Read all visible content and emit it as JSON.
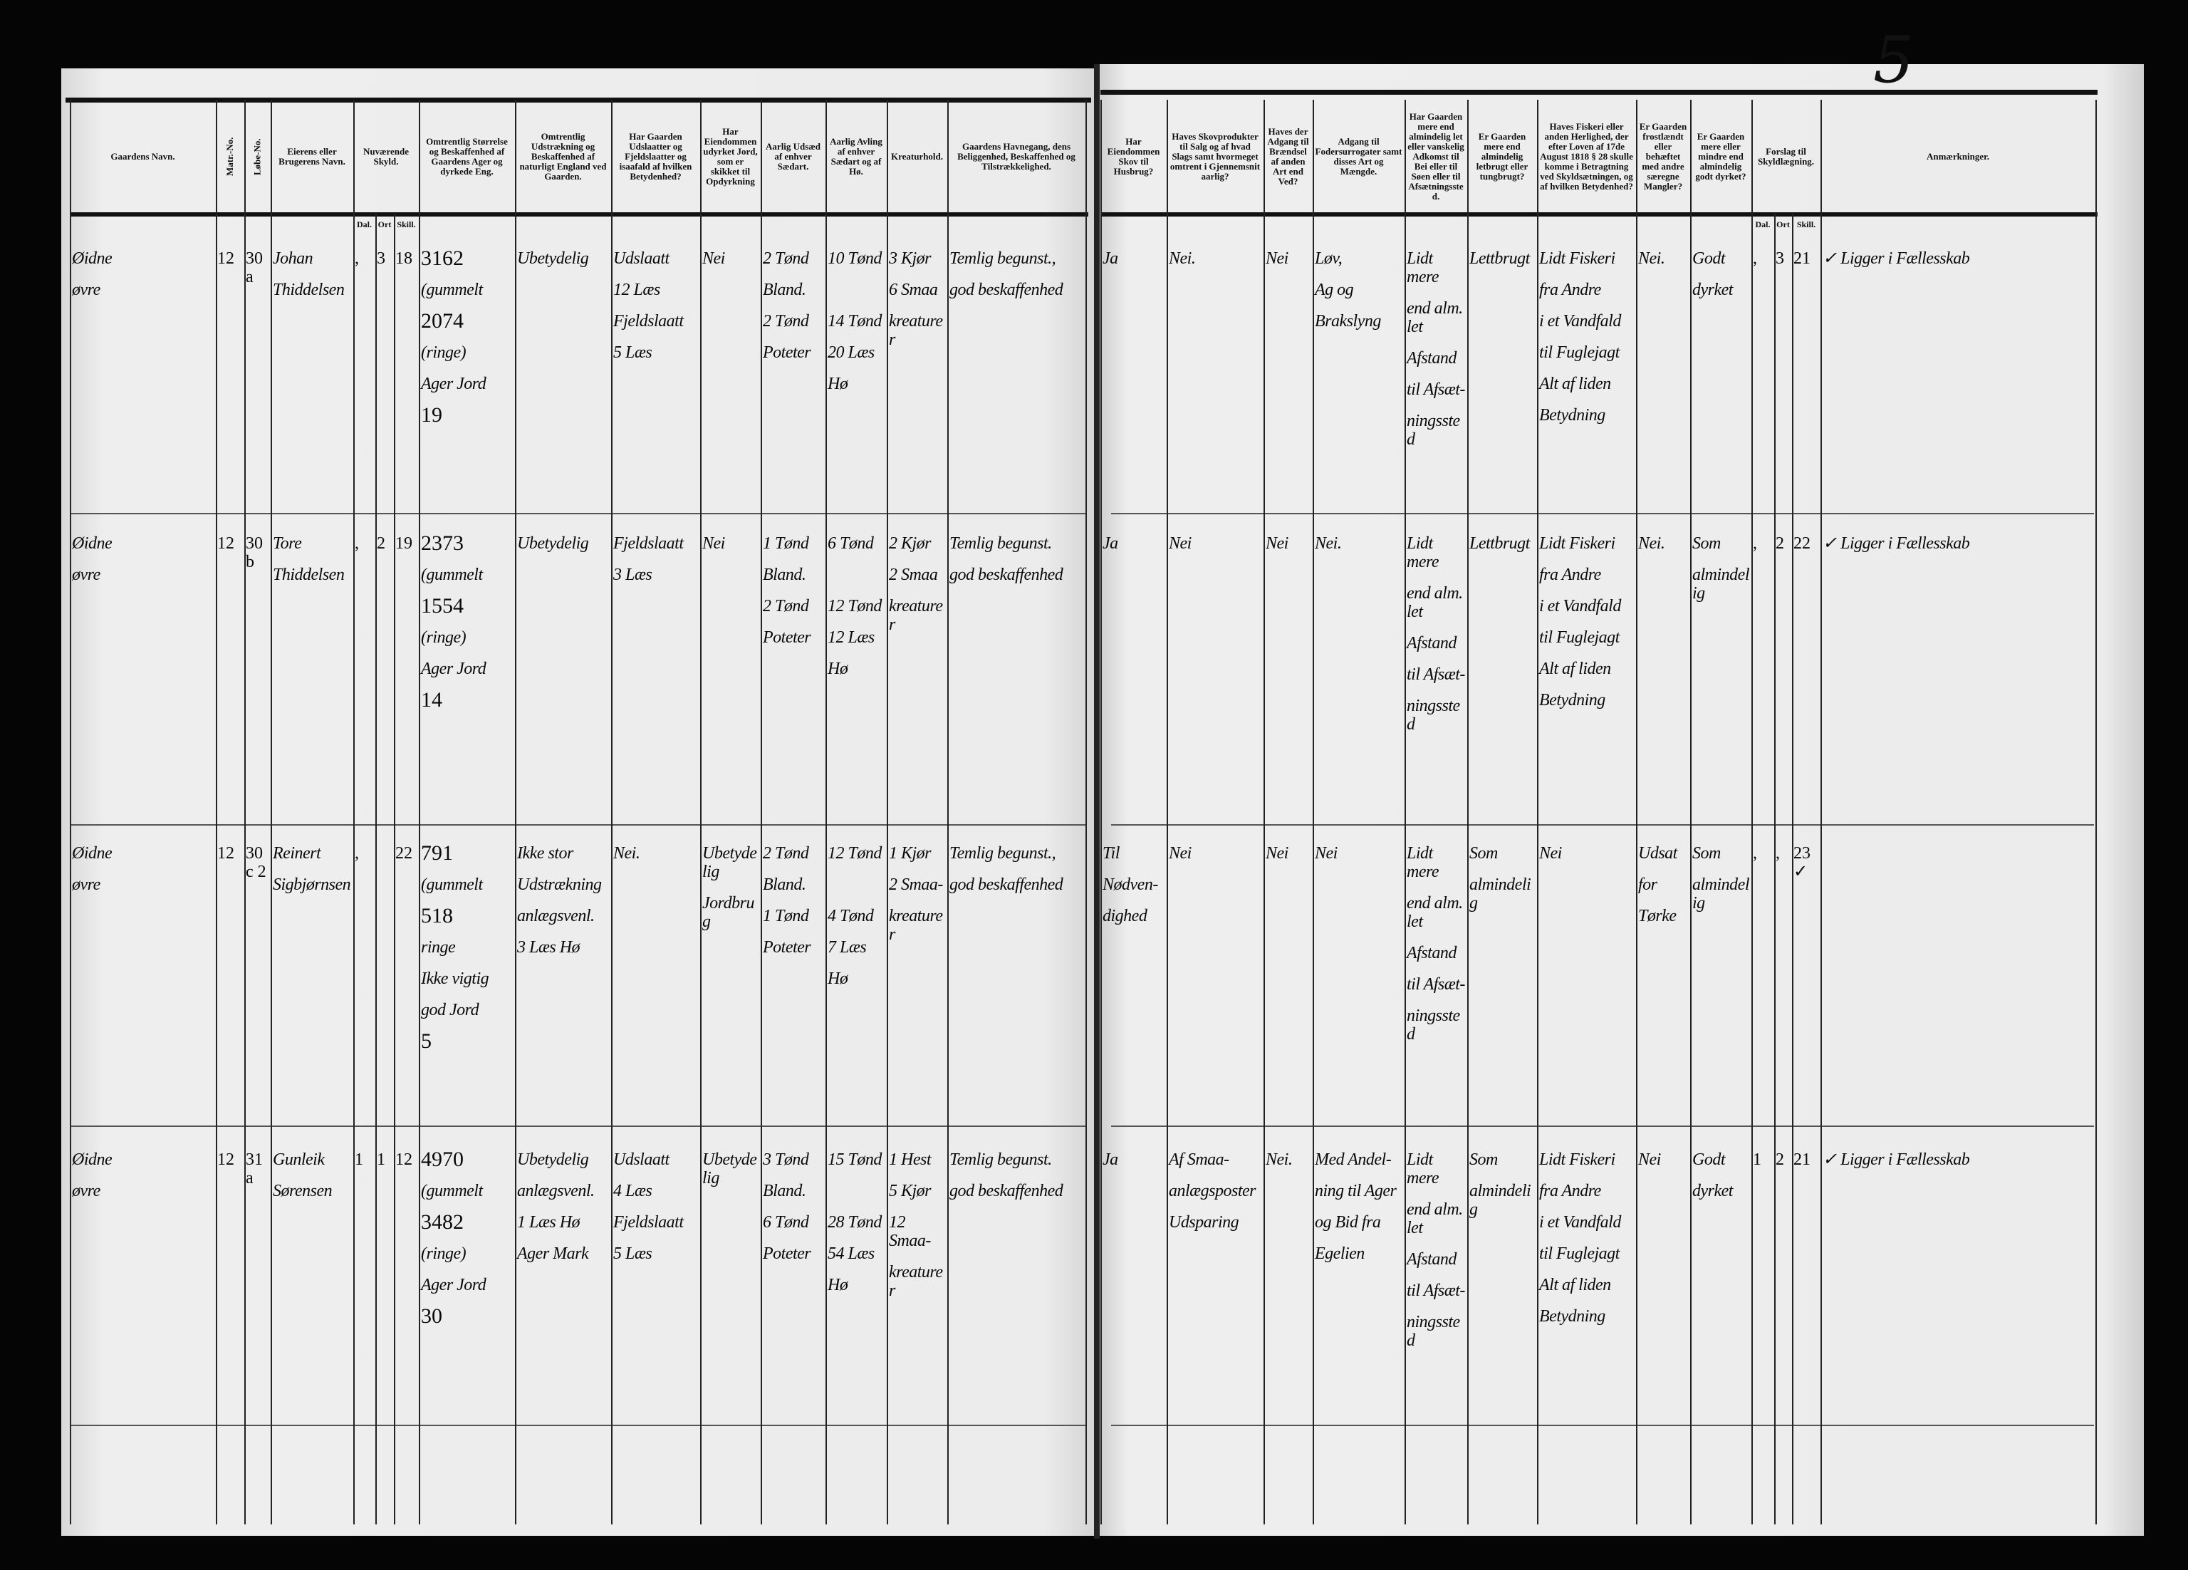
{
  "page_number": "5",
  "left_headers": [
    "Gaardens Navn.",
    "Matr.-No.",
    "Løbe-No.",
    "Eierens eller Brugerens Navn.",
    "Nuværende Skyld.",
    "Omtrentlig Størrelse og Beskaffenhed af Gaardens Ager og dyrkede Eng.",
    "Omtrentlig Udstrækning og Beskaffenhed af naturligt England ved Gaarden.",
    "Har Gaarden Udslaatter og Fjeldslaatter og isaafald af hvilken Betydenhed?",
    "Har Eiendommen udyrket Jord, som er skikket til Opdyrkning",
    "Aarlig Udsæd af enhver Sædart.",
    "Aarlig Avling af enhver Sædart og af Hø.",
    "Kreaturhold.",
    "Gaardens Havnegang, dens Beliggenhed, Beskaffenhed og Tilstrækkelighed."
  ],
  "right_headers": [
    "Har Eiendommen Skov til Husbrug?",
    "Haves Skovprodukter til Salg og af hvad Slags samt hvormeget omtrent i Gjennemsnit aarlig?",
    "Haves der Adgang til Brændsel af anden Art end Ved?",
    "Adgang til Fodersurrogater samt disses Art og Mængde.",
    "Har Gaarden mere end almindelig let eller vanskelig Adkomst til Bei eller til Søen eller til Afsætningssted.",
    "Er Gaarden mere end almindelig letbrugt eller tungbrugt?",
    "Haves Fiskeri eller anden Herlighed, der efter Loven af 17de August 1818 § 28 skulle komme i Betragtning ved Skyldsætningen, og af hvilken Betydenhed?",
    "Er Gaarden frostlændt eller behæftet med andre særegne Mangler?",
    "Er Gaarden mere eller mindre end almindelig godt dyrket?",
    "Forslag til Skyldlægning.",
    "Anmærkninger."
  ],
  "skyld_subheaders": [
    "Dal.",
    "Ort",
    "Skill."
  ],
  "rows": [
    {
      "left": [
        [
          "Øidne",
          "øvre"
        ],
        [
          "12"
        ],
        [
          "30a"
        ],
        [
          "Johan",
          "Thiddelsen"
        ],
        [
          ","
        ],
        [
          "3"
        ],
        [
          "18"
        ],
        [
          "3162",
          "(gummelt",
          "2074",
          "(ringe)",
          "Ager Jord",
          "19"
        ],
        [
          "Ubetydelig"
        ],
        [
          "Udslaatt",
          "12 Læs",
          "Fjeldslaatt",
          "5 Læs"
        ],
        [
          "Nei"
        ],
        [
          "2 Tønd",
          "Bland.",
          "2 Tønd",
          "Poteter"
        ],
        [
          "10 Tønd",
          "",
          "14 Tønd",
          "20 Læs",
          "Hø"
        ],
        [
          "3 Kjør",
          "6 Smaa",
          "kreaturer"
        ],
        [
          "Temlig begunst.,",
          "god beskaffenhed"
        ]
      ],
      "right": [
        [
          "Ja"
        ],
        [
          "Nei."
        ],
        [
          "Nei"
        ],
        [
          "Løv,",
          "Ag og",
          "Brakslyng"
        ],
        [
          "Lidt mere",
          "end alm. let",
          "Afstand",
          "til Afsæt-",
          "ningssted"
        ],
        [
          "Lettbrugt"
        ],
        [
          "Lidt Fiskeri",
          "fra Andre",
          "i et Vandfald",
          "til Fuglejagt",
          "Alt af liden",
          "Betydning"
        ],
        [
          "Nei."
        ],
        [
          "Godt",
          "dyrket"
        ],
        [
          ","
        ],
        [
          "3"
        ],
        [
          "21"
        ],
        [
          "✓ Ligger i Fællesskab"
        ]
      ]
    },
    {
      "left": [
        [
          "Øidne",
          "øvre"
        ],
        [
          "12"
        ],
        [
          "30b"
        ],
        [
          "Tore",
          "Thiddelsen"
        ],
        [
          ","
        ],
        [
          "2"
        ],
        [
          "19"
        ],
        [
          "2373",
          "(gummelt",
          "1554",
          "(ringe)",
          "Ager Jord",
          "14"
        ],
        [
          "Ubetydelig"
        ],
        [
          "Fjeldslaatt",
          "3 Læs"
        ],
        [
          "Nei"
        ],
        [
          "1 Tønd",
          "Bland.",
          "2 Tønd",
          "Poteter"
        ],
        [
          "6 Tønd",
          "",
          "12 Tønd",
          "12 Læs",
          "Hø"
        ],
        [
          "2 Kjør",
          "2 Smaa",
          "kreaturer"
        ],
        [
          "Temlig begunst.",
          "god beskaffenhed"
        ]
      ],
      "right": [
        [
          "Ja"
        ],
        [
          "Nei"
        ],
        [
          "Nei"
        ],
        [
          "Nei."
        ],
        [
          "Lidt mere",
          "end alm. let",
          "Afstand",
          "til Afsæt-",
          "ningssted"
        ],
        [
          "Lettbrugt"
        ],
        [
          "Lidt Fiskeri",
          "fra Andre",
          "i et Vandfald",
          "til Fuglejagt",
          "Alt af liden",
          "Betydning"
        ],
        [
          "Nei."
        ],
        [
          "Som",
          "almindelig"
        ],
        [
          ","
        ],
        [
          "2"
        ],
        [
          "22"
        ],
        [
          "✓ Ligger i Fællesskab"
        ]
      ]
    },
    {
      "left": [
        [
          "Øidne",
          "øvre"
        ],
        [
          "12"
        ],
        [
          "30c 2"
        ],
        [
          "Reinert",
          "Sigbjørnsen"
        ],
        [
          ","
        ],
        [
          ""
        ],
        [
          "22"
        ],
        [
          "791",
          "(gummelt",
          "518",
          "ringe",
          "Ikke vigtig",
          "god Jord",
          "5"
        ],
        [
          "Ikke stor",
          "Udstrækning",
          "anlægsvenl.",
          "3 Læs Hø"
        ],
        [
          "Nei."
        ],
        [
          "Ubetydelig",
          "Jordbrug"
        ],
        [
          "2 Tønd",
          "Bland.",
          "1 Tønd",
          "Poteter"
        ],
        [
          "12 Tønd",
          "",
          "4 Tønd",
          "7 Læs",
          "Hø"
        ],
        [
          "1 Kjør",
          "2 Smaa-",
          "kreaturer"
        ],
        [
          "Temlig begunst.,",
          "god beskaffenhed"
        ]
      ],
      "right": [
        [
          "Til",
          "Nødven-",
          "dighed"
        ],
        [
          "Nei"
        ],
        [
          "Nei"
        ],
        [
          "Nei"
        ],
        [
          "Lidt mere",
          "end alm. let",
          "Afstand",
          "til Afsæt-",
          "ningssted"
        ],
        [
          "Som",
          "almindelig"
        ],
        [
          "Nei"
        ],
        [
          "Udsat",
          "for",
          "Tørke"
        ],
        [
          "Som",
          "almindelig"
        ],
        [
          ","
        ],
        [
          ","
        ],
        [
          "23✓"
        ],
        [
          ""
        ]
      ]
    },
    {
      "left": [
        [
          "Øidne",
          "øvre"
        ],
        [
          "12"
        ],
        [
          "31a"
        ],
        [
          "Gunleik",
          "Sørensen"
        ],
        [
          "1"
        ],
        [
          "1"
        ],
        [
          "12"
        ],
        [
          "4970",
          "(gummelt",
          "3482",
          "(ringe)",
          "Ager Jord",
          "30"
        ],
        [
          "Ubetydelig",
          "anlægsvenl.",
          "1 Læs Hø",
          "Ager Mark"
        ],
        [
          "Udslaatt",
          "4 Læs",
          "Fjeldslaatt",
          "5 Læs"
        ],
        [
          "Ubetydelig"
        ],
        [
          "3 Tønd",
          "Bland.",
          "6 Tønd",
          "Poteter"
        ],
        [
          "15 Tønd",
          "",
          "28 Tønd",
          "54 Læs",
          "Hø"
        ],
        [
          "1 Hest",
          "5 Kjør",
          "12 Smaa-",
          "kreaturer"
        ],
        [
          "Temlig begunst.",
          "god beskaffenhed"
        ]
      ],
      "right": [
        [
          "Ja"
        ],
        [
          "Af Smaa-",
          "anlægsposter",
          "Udsparing"
        ],
        [
          "Nei."
        ],
        [
          "Med Andel-",
          "ning til Ager",
          "og Bid fra",
          "Egelien"
        ],
        [
          "Lidt mere",
          "end alm. let",
          "Afstand",
          "til Afsæt-",
          "ningssted"
        ],
        [
          "Som",
          "almindelig"
        ],
        [
          "Lidt Fiskeri",
          "fra Andre",
          "i et Vandfald",
          "til Fuglejagt",
          "Alt af liden",
          "Betydning"
        ],
        [
          "Nei"
        ],
        [
          "Godt",
          "dyrket"
        ],
        [
          "1"
        ],
        [
          "2"
        ],
        [
          "21"
        ],
        [
          "✓ Ligger i Fællesskab"
        ]
      ]
    }
  ],
  "colors": {
    "paper": "#ebebeb",
    "ink": "#0a0a0a",
    "background": "#050505"
  }
}
